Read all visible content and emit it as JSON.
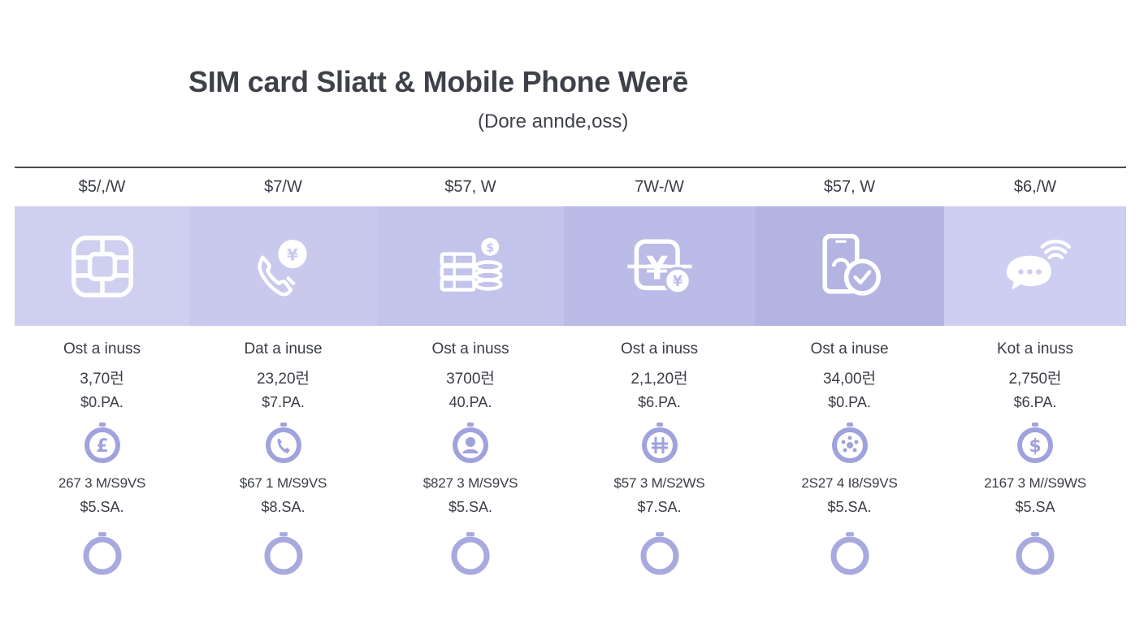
{
  "header": {
    "title": "SIM card Sliatt & Mobile Phone Werē",
    "subtitle": "(Dore annde,oss)"
  },
  "colors": {
    "band_1": "#cfd0f0",
    "band_2": "#c9c9ee",
    "band_3": "#c3c4eb",
    "band_4": "#babbe6",
    "band_5": "#b3b4e2",
    "band_6": "#cdcef0",
    "icon_circle": "#9fa2dc",
    "rule": "#4a4a4a"
  },
  "plans": [
    {
      "price": "$5/,/W",
      "band_icon": "sim-chip-icon",
      "status": "Ost a inuss",
      "amount": "3,70런",
      "rate": "$0.PA.",
      "circle_icon": "pound-icon",
      "speed": "267 3 M/S9VS",
      "sa": "$5.SA."
    },
    {
      "price": "$7/W",
      "band_icon": "phone-yen-icon",
      "status": "Dat a inuse",
      "amount": "23,20런",
      "rate": "$7.PA.",
      "circle_icon": "phone-icon",
      "speed": "$67 1 M/S9VS",
      "sa": "$8.SA."
    },
    {
      "price": "$57, W",
      "band_icon": "coins-stack-icon",
      "status": "Ost a inuss",
      "amount": "3700런",
      "rate": "40.PA.",
      "circle_icon": "user-icon",
      "speed": "$827 3 M/S9VS",
      "sa": "$5.SA."
    },
    {
      "price": "7W-/W",
      "band_icon": "yen-exchange-icon",
      "status": "Ost a inuss",
      "amount": "2,1,20런",
      "rate": "$6.PA.",
      "circle_icon": "currency-icon",
      "speed": "$57 3 M/S2WS",
      "sa": "$7.SA."
    },
    {
      "price": "$57, W",
      "band_icon": "mobile-check-icon",
      "status": "Ost a inuse",
      "amount": "34,00런",
      "rate": "$0.PA.",
      "circle_icon": "network-icon",
      "speed": "2S27 4 I8/S9VS",
      "sa": "$5.SA."
    },
    {
      "price": "$6,/W",
      "band_icon": "chat-signal-icon",
      "status": "Kot a inuss",
      "amount": "2,750런",
      "rate": "$6.PA.",
      "circle_icon": "dollar-icon",
      "speed": "2167 3 M//S9WS",
      "sa": "$5.SA"
    }
  ]
}
